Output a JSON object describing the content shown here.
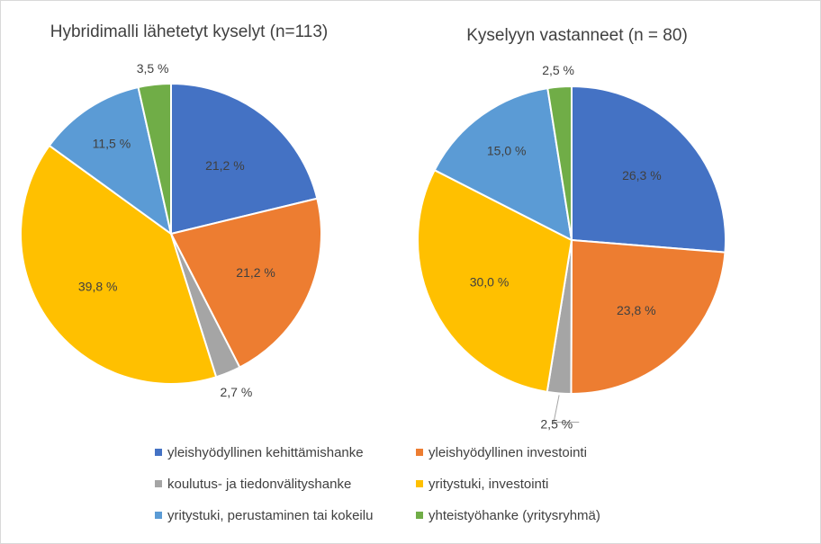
{
  "chart_data": [
    {
      "type": "pie",
      "title": "Hybridimalli lähetetyt kyselyt (n=113)",
      "categories": [
        "yleishyödyllinen kehittämishanke",
        "yleishyödyllinen investointi",
        "koulutus- ja tiedonvälityshanke",
        "yritystuki, investointi",
        "yritystuki, perustaminen tai kokeilu",
        "yhteistyöhanke (yritysryhmä)"
      ],
      "values": [
        21.2,
        21.2,
        2.7,
        39.8,
        11.5,
        3.5
      ],
      "labels": [
        "21,2 %",
        "21,2 %",
        "2,7 %",
        "39,8 %",
        "11,5 %",
        "3,5 %"
      ]
    },
    {
      "type": "pie",
      "title": "Kyselyyn vastanneet (n = 80)",
      "categories": [
        "yleishyödyllinen kehittämishanke",
        "yleishyödyllinen investointi",
        "koulutus- ja tiedonvälityshanke",
        "yritystuki, investointi",
        "yritystuki, perustaminen tai kokeilu",
        "yhteistyöhanke (yritysryhmä)"
      ],
      "values": [
        26.3,
        23.8,
        2.5,
        30.0,
        15.0,
        2.5
      ],
      "labels": [
        "26,3 %",
        "23,8 %",
        "2,5 %",
        "30,0 %",
        "15,0 %",
        "2,5 %"
      ]
    }
  ],
  "colors": [
    "#4472C4",
    "#ED7D31",
    "#A5A5A5",
    "#FFC000",
    "#5B9BD5",
    "#70AD47"
  ],
  "legend": {
    "placement": "bottom",
    "items": [
      "yleishyödyllinen kehittämishanke",
      "yleishyödyllinen investointi",
      "koulutus- ja tiedonvälityshanke",
      "yritystuki, investointi",
      "yritystuki, perustaminen tai kokeilu",
      "yhteistyöhanke (yritysryhmä)"
    ]
  }
}
